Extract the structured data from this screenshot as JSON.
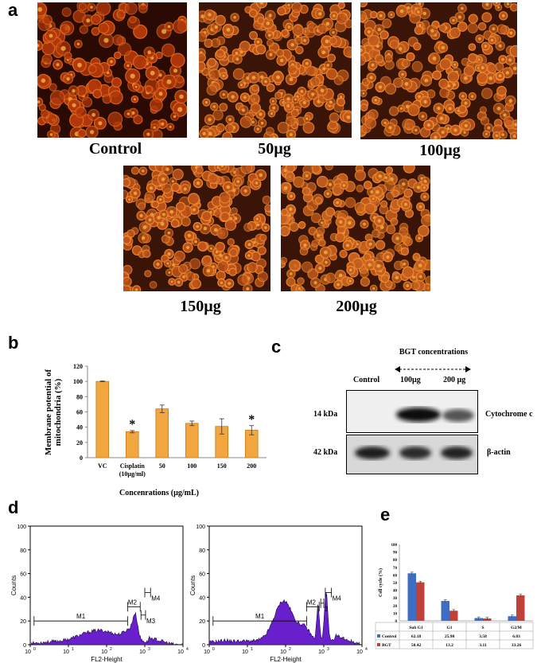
{
  "panels": {
    "a": {
      "letter": "a",
      "images": [
        {
          "caption": "Control",
          "tint": "#b3380c"
        },
        {
          "caption": "50µg",
          "tint": "#c0561a"
        },
        {
          "caption": "100µg",
          "tint": "#c35a1c"
        },
        {
          "caption": "150µg",
          "tint": "#c0541a"
        },
        {
          "caption": "200µg",
          "tint": "#c6601e"
        }
      ]
    },
    "b": {
      "letter": "b",
      "chart_data": {
        "type": "bar",
        "ylabel": "Membrane potential of mitochondria (%)",
        "xlabel": "Concenrations (µg/mL)",
        "ylim": [
          0,
          120
        ],
        "yticks": [
          "0",
          "20",
          "40",
          "60",
          "80",
          "100",
          "120"
        ],
        "categories": [
          "VC",
          "Cisplatin (10µg/ml)",
          "50",
          "100",
          "150",
          "200"
        ],
        "values": [
          100,
          34,
          64,
          45,
          41,
          36
        ],
        "errors": [
          0.5,
          1.5,
          5,
          3,
          10,
          6
        ],
        "significance": [
          false,
          true,
          false,
          false,
          false,
          true
        ],
        "sig_mark": "*",
        "bar_color": "#f2a640"
      }
    },
    "c": {
      "letter": "c",
      "header": "BGT concentrations",
      "lanes": [
        "Control",
        "100µg",
        "200 µg"
      ],
      "rows": [
        {
          "kda": "14 kDa",
          "protein": "Cytochrome c"
        },
        {
          "kda": "42 kDa",
          "protein": "β-actin"
        }
      ]
    },
    "d": {
      "letter": "d",
      "histograms": [
        {
          "y_axis_label": "Counts",
          "x_axis_label": "FL2-Height",
          "y_ticks": [
            "0",
            "20",
            "40",
            "60",
            "80",
            "100"
          ],
          "x_ticks": [
            "10",
            "10",
            "10",
            "10",
            "10"
          ],
          "x_exp": [
            "0",
            "1",
            "2",
            "3",
            "4"
          ],
          "markers": [
            "M1",
            "M2",
            "M3",
            "M4"
          ],
          "fill": "#6a1fcc"
        },
        {
          "y_axis_label": "Counts",
          "x_axis_label": "FL2-Height",
          "y_ticks": [
            "0",
            "20",
            "40",
            "60",
            "80",
            "100"
          ],
          "x_ticks": [
            "10",
            "10",
            "10",
            "10",
            "10"
          ],
          "x_exp": [
            "0",
            "1",
            "2",
            "3",
            "4"
          ],
          "markers": [
            "M1",
            "M2",
            "3",
            "M4"
          ],
          "fill": "#6a1fcc"
        }
      ]
    },
    "e": {
      "letter": "e",
      "chart_data": {
        "type": "bar",
        "ylabel": "Cell cycle (%)",
        "ylim": [
          0,
          100
        ],
        "yticks": [
          "0",
          "10",
          "20",
          "30",
          "40",
          "50",
          "60",
          "70",
          "80",
          "90",
          "100"
        ],
        "categories": [
          "Sub G1",
          "G1",
          "S",
          "G2/M"
        ],
        "series": [
          {
            "name": "Control",
            "values": [
              62.18,
              25.98,
              3.58,
              6.03
            ],
            "color": "#3d6ec4"
          },
          {
            "name": "BGT",
            "values": [
              50.42,
              13.2,
              3.11,
              33.26
            ],
            "color": "#c0403a"
          }
        ],
        "table": [
          [
            "62.18",
            "25.98",
            "3.58",
            "6.03"
          ],
          [
            "50.42",
            "13.2",
            "3.11",
            "33.26"
          ]
        ]
      }
    }
  }
}
